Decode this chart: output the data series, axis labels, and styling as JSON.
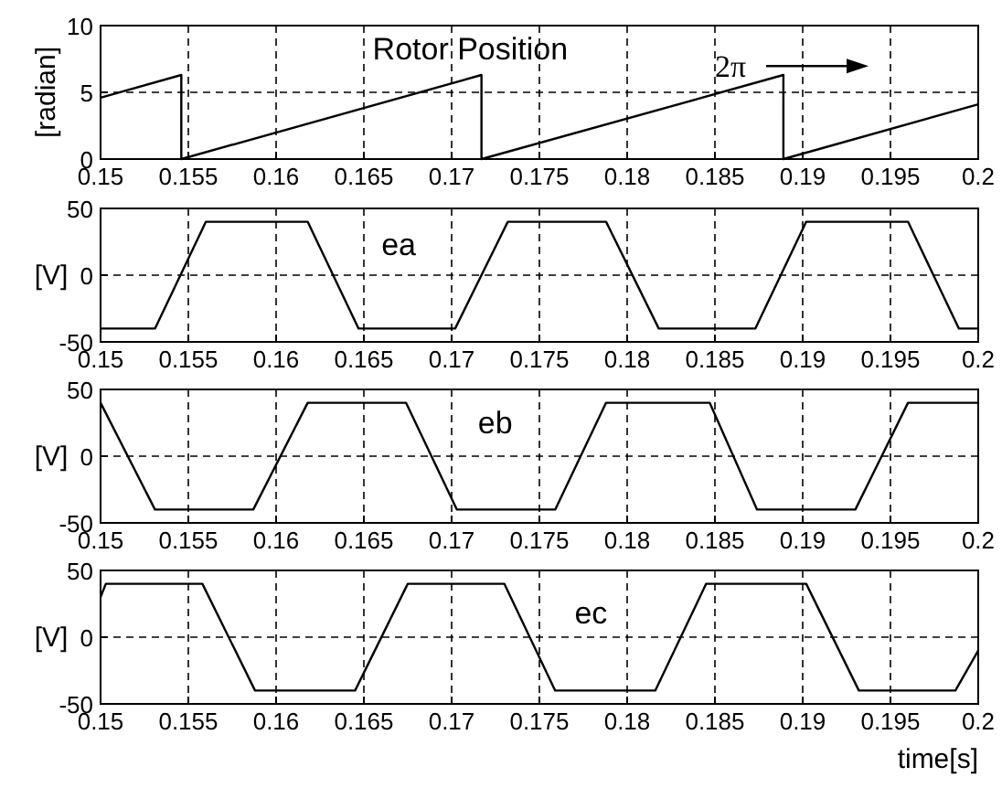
{
  "chart_data": [
    {
      "type": "line",
      "ylabel": "[radian]",
      "xlim": [
        0.15,
        0.2
      ],
      "ylim": [
        0,
        10
      ],
      "xticks": [
        0.15,
        0.155,
        0.16,
        0.165,
        0.17,
        0.175,
        0.18,
        0.185,
        0.19,
        0.195,
        0.2
      ],
      "yticks": [
        0,
        5,
        10
      ],
      "grid": true,
      "marker": "none",
      "line_style": "solid",
      "series": [
        {
          "name": "Rotor Position",
          "color": "#000000",
          "x": [
            0.15,
            0.1546,
            0.1546,
            0.1717,
            0.1717,
            0.1889,
            0.1889,
            0.2
          ],
          "values": [
            4.6,
            6.3,
            0,
            6.3,
            0,
            6.3,
            0,
            4.1
          ]
        }
      ],
      "annotations": [
        "2π"
      ]
    },
    {
      "type": "line",
      "ylabel": "[V]",
      "xlim": [
        0.15,
        0.2
      ],
      "ylim": [
        -50,
        50
      ],
      "xticks": [
        0.15,
        0.155,
        0.16,
        0.165,
        0.17,
        0.175,
        0.18,
        0.185,
        0.19,
        0.195,
        0.2
      ],
      "yticks": [
        -50,
        0,
        50
      ],
      "grid": true,
      "legend": false,
      "marker": "none",
      "line_style": "solid",
      "series": [
        {
          "name": "ea",
          "color": "#000000",
          "x": [
            0.15,
            0.1531,
            0.156,
            0.1618,
            0.1647,
            0.1702,
            0.1732,
            0.1788,
            0.1818,
            0.1873,
            0.1902,
            0.196,
            0.1989,
            0.2
          ],
          "values": [
            -40,
            -40,
            40,
            40,
            -40,
            -40,
            40,
            40,
            -40,
            -40,
            40,
            40,
            -40,
            -40
          ]
        }
      ]
    },
    {
      "type": "line",
      "ylabel": "[V]",
      "xlim": [
        0.15,
        0.2
      ],
      "ylim": [
        -50,
        50
      ],
      "xticks": [
        0.15,
        0.155,
        0.16,
        0.165,
        0.17,
        0.175,
        0.18,
        0.185,
        0.19,
        0.195,
        0.2
      ],
      "yticks": [
        -50,
        0,
        50
      ],
      "grid": true,
      "legend": false,
      "marker": "none",
      "line_style": "solid",
      "series": [
        {
          "name": "eb",
          "color": "#000000",
          "x": [
            0.15,
            0.1531,
            0.1587,
            0.1618,
            0.1674,
            0.1703,
            0.1759,
            0.1788,
            0.1847,
            0.1874,
            0.193,
            0.196,
            0.2
          ],
          "values": [
            40,
            -40,
            -40,
            40,
            40,
            -40,
            -40,
            40,
            40,
            -40,
            -40,
            40,
            40
          ]
        }
      ]
    },
    {
      "type": "line",
      "ylabel": "[V]",
      "xlabel": "time[s]",
      "xlim": [
        0.15,
        0.2
      ],
      "ylim": [
        -50,
        50
      ],
      "xticks": [
        0.15,
        0.155,
        0.16,
        0.165,
        0.17,
        0.175,
        0.18,
        0.185,
        0.19,
        0.195,
        0.2
      ],
      "yticks": [
        -50,
        0,
        50
      ],
      "grid": true,
      "legend": false,
      "marker": "none",
      "line_style": "solid",
      "series": [
        {
          "name": "ec",
          "color": "#000000",
          "x": [
            0.15,
            0.1503,
            0.1558,
            0.1588,
            0.1645,
            0.1675,
            0.173,
            0.1759,
            0.1816,
            0.1845,
            0.1902,
            0.1932,
            0.1987,
            0.2
          ],
          "values": [
            30,
            40,
            40,
            -40,
            -40,
            40,
            40,
            -40,
            -40,
            40,
            40,
            -40,
            -40,
            -10
          ]
        }
      ]
    }
  ]
}
